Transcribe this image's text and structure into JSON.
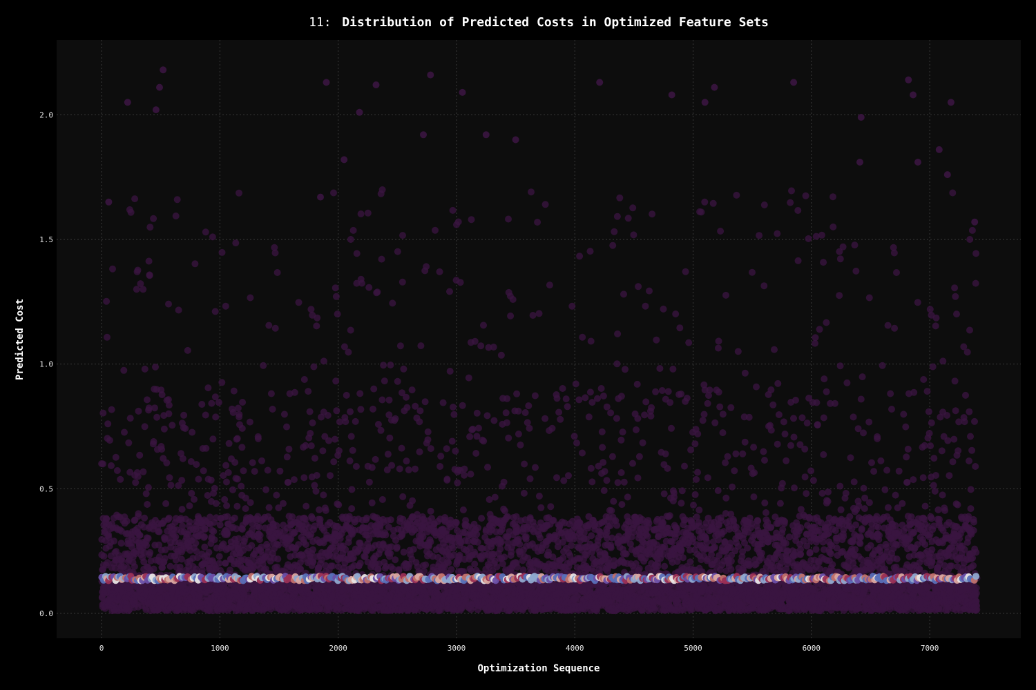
{
  "chart_data": {
    "type": "scatter",
    "title_prefix": "11:",
    "title": "Distribution of Predicted Costs in Optimized Feature Sets",
    "xlabel": "Optimization Sequence",
    "ylabel": "Predicted Cost",
    "xlim": [
      -380,
      7770
    ],
    "ylim": [
      -0.1,
      2.3
    ],
    "xticks": [
      0,
      1000,
      2000,
      3000,
      4000,
      5000,
      6000,
      7000
    ],
    "yticks": [
      0.0,
      0.5,
      1.0,
      1.5,
      2.0
    ],
    "ytick_labels": [
      "0.0",
      "0.5",
      "1.0",
      "1.5",
      "2.0"
    ],
    "grid": true,
    "background": "#000000",
    "plot_background": "#0d0d0d",
    "n_points": 7400,
    "x_range": [
      0,
      7400
    ],
    "base_color": "#3a1540",
    "highlight_level": 0.14,
    "highlight_colors": [
      "#c0716c",
      "#8fa8cf",
      "#e8e4e4",
      "#6a4fa8",
      "#9a2f55",
      "#d9a7a0",
      "#5870b8"
    ],
    "notable_points": [
      {
        "x": 520,
        "y": 2.18
      },
      {
        "x": 460,
        "y": 2.02
      },
      {
        "x": 490,
        "y": 2.11
      },
      {
        "x": 220,
        "y": 2.05
      },
      {
        "x": 1900,
        "y": 2.13
      },
      {
        "x": 2180,
        "y": 2.01
      },
      {
        "x": 2320,
        "y": 2.12
      },
      {
        "x": 2780,
        "y": 2.16
      },
      {
        "x": 3050,
        "y": 2.09
      },
      {
        "x": 4210,
        "y": 2.13
      },
      {
        "x": 4820,
        "y": 2.08
      },
      {
        "x": 5100,
        "y": 2.05
      },
      {
        "x": 5180,
        "y": 2.11
      },
      {
        "x": 5850,
        "y": 2.13
      },
      {
        "x": 6820,
        "y": 2.14
      },
      {
        "x": 6860,
        "y": 2.08
      },
      {
        "x": 7180,
        "y": 2.05
      },
      {
        "x": 2720,
        "y": 1.92
      },
      {
        "x": 3250,
        "y": 1.92
      },
      {
        "x": 3500,
        "y": 1.9
      },
      {
        "x": 6420,
        "y": 1.99
      },
      {
        "x": 7080,
        "y": 1.86
      },
      {
        "x": 60,
        "y": 1.65
      },
      {
        "x": 1850,
        "y": 1.67
      },
      {
        "x": 2050,
        "y": 1.82
      },
      {
        "x": 6410,
        "y": 1.81
      },
      {
        "x": 6900,
        "y": 1.81
      },
      {
        "x": 7150,
        "y": 1.76
      },
      {
        "x": 7380,
        "y": 1.57
      }
    ]
  }
}
